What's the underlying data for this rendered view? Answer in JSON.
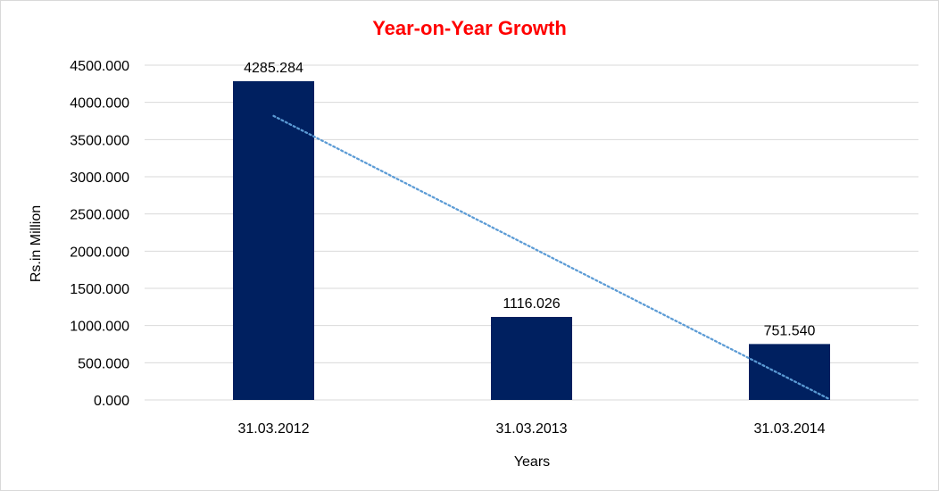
{
  "chart_data": {
    "type": "bar",
    "title": "Year-on-Year Growth",
    "xlabel": "Years",
    "ylabel": "Rs.in Million",
    "categories": [
      "31.03.2012",
      "31.03.2013",
      "31.03.2014"
    ],
    "series": [
      {
        "values": [
          4285.284,
          1116.026,
          751.54
        ],
        "data_labels": [
          "4285.284",
          "1116.026",
          "751.540"
        ]
      }
    ],
    "ylim": [
      0,
      4500
    ],
    "yticks": [
      "0.000",
      "500.000",
      "1000.000",
      "1500.000",
      "2000.000",
      "2500.000",
      "3000.000",
      "3500.000",
      "4000.000",
      "4500.000"
    ],
    "ytick_values": [
      0,
      500,
      1000,
      1500,
      2000,
      2500,
      3000,
      3500,
      4000,
      4500
    ],
    "trendline": {
      "type": "linear",
      "style": "dotted"
    },
    "grid": true,
    "legend": "none",
    "colors": {
      "bar": "#002060",
      "title": "#ff0000",
      "trendline": "#5b9bd5",
      "grid": "#d9d9d9"
    }
  }
}
